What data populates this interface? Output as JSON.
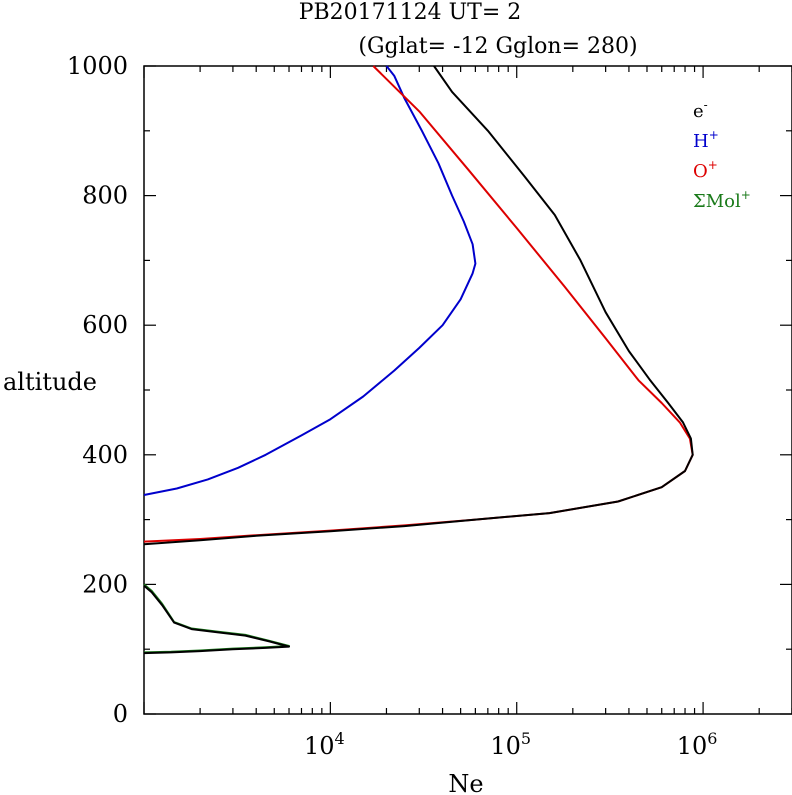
{
  "chart_data": {
    "type": "line",
    "title": "PB20171124   UT=  2",
    "subtitle": "(Gglat= -12   Gglon=  280)",
    "xlabel": "Ne",
    "ylabel": "altitude",
    "x_scale": "log",
    "xlim": [
      1000,
      3000000
    ],
    "ylim": [
      0,
      1000
    ],
    "y_ticks": [
      {
        "value": 0,
        "label": "0"
      },
      {
        "value": 200,
        "label": "200"
      },
      {
        "value": 400,
        "label": "400"
      },
      {
        "value": 600,
        "label": "600"
      },
      {
        "value": 800,
        "label": "800"
      },
      {
        "value": 1000,
        "label": "1000"
      }
    ],
    "x_ticks": [
      {
        "value": 10000,
        "base": "10",
        "exp": "4"
      },
      {
        "value": 100000,
        "base": "10",
        "exp": "5"
      },
      {
        "value": 1000000,
        "base": "10",
        "exp": "6"
      }
    ],
    "legend_position": "top-right",
    "grid": false,
    "series": [
      {
        "id": "mol",
        "name": "ΣMol+",
        "legend_base": "ΣMol",
        "legend_sup": "+",
        "color": "#1a7a1a",
        "points": [
          [
            1000,
            200
          ],
          [
            1100,
            190
          ],
          [
            1250,
            170
          ],
          [
            1450,
            142
          ],
          [
            1800,
            132
          ],
          [
            2500,
            127
          ],
          [
            3500,
            122
          ],
          [
            4700,
            113
          ],
          [
            6000,
            105
          ],
          [
            4500,
            103
          ],
          [
            3000,
            101
          ],
          [
            2000,
            98
          ],
          [
            1400,
            96
          ],
          [
            1000,
            95
          ]
        ]
      },
      {
        "id": "hplus",
        "name": "H+",
        "legend_base": "H",
        "legend_sup": "+",
        "color": "#0000cc",
        "points": [
          [
            1000,
            338
          ],
          [
            1500,
            348
          ],
          [
            2200,
            362
          ],
          [
            3200,
            380
          ],
          [
            4500,
            400
          ],
          [
            7000,
            430
          ],
          [
            10000,
            455
          ],
          [
            15000,
            490
          ],
          [
            22000,
            530
          ],
          [
            30000,
            565
          ],
          [
            40000,
            600
          ],
          [
            50000,
            640
          ],
          [
            58000,
            680
          ],
          [
            60000,
            695
          ],
          [
            58000,
            725
          ],
          [
            52000,
            760
          ],
          [
            45000,
            800
          ],
          [
            38000,
            850
          ],
          [
            31000,
            900
          ],
          [
            25000,
            950
          ],
          [
            22000,
            985
          ],
          [
            20000,
            1000
          ]
        ]
      },
      {
        "id": "oplus",
        "name": "O+",
        "legend_base": "O",
        "legend_sup": "+",
        "color": "#dd0000",
        "points": [
          [
            1000,
            266
          ],
          [
            2000,
            270
          ],
          [
            4000,
            276
          ],
          [
            10000,
            283
          ],
          [
            25000,
            291
          ],
          [
            60000,
            300
          ],
          [
            150000,
            310
          ],
          [
            350000,
            328
          ],
          [
            600000,
            350
          ],
          [
            800000,
            375
          ],
          [
            880000,
            400
          ],
          [
            850000,
            425
          ],
          [
            750000,
            450
          ],
          [
            600000,
            480
          ],
          [
            450000,
            515
          ],
          [
            300000,
            580
          ],
          [
            180000,
            660
          ],
          [
            100000,
            750
          ],
          [
            55000,
            840
          ],
          [
            30000,
            930
          ],
          [
            17000,
            1000
          ]
        ]
      },
      {
        "id": "electron",
        "name": "e-",
        "legend_base": "e",
        "legend_sup": "-",
        "color": "#000000",
        "points": [
          [
            1000,
            262
          ],
          [
            2000,
            268
          ],
          [
            4000,
            275
          ],
          [
            10000,
            282
          ],
          [
            25000,
            290
          ],
          [
            60000,
            300
          ],
          [
            150000,
            310
          ],
          [
            350000,
            328
          ],
          [
            600000,
            350
          ],
          [
            800000,
            375
          ],
          [
            880000,
            400
          ],
          [
            860000,
            425
          ],
          [
            780000,
            450
          ],
          [
            650000,
            480
          ],
          [
            520000,
            515
          ],
          [
            400000,
            560
          ],
          [
            300000,
            620
          ],
          [
            220000,
            700
          ],
          [
            160000,
            770
          ],
          [
            110000,
            830
          ],
          [
            70000,
            900
          ],
          [
            45000,
            960
          ],
          [
            36000,
            1000
          ]
        ]
      },
      {
        "id": "electron_low",
        "name": "",
        "legend_base": "",
        "legend_sup": "",
        "color": "#000000",
        "points": [
          [
            1000,
            198
          ],
          [
            1100,
            188
          ],
          [
            1250,
            168
          ],
          [
            1450,
            141
          ],
          [
            1800,
            131
          ],
          [
            2500,
            126
          ],
          [
            3500,
            121
          ],
          [
            4700,
            112
          ],
          [
            6000,
            104
          ],
          [
            4500,
            102
          ],
          [
            3000,
            100
          ],
          [
            2000,
            97
          ],
          [
            1400,
            95
          ],
          [
            1000,
            94
          ]
        ]
      }
    ]
  }
}
